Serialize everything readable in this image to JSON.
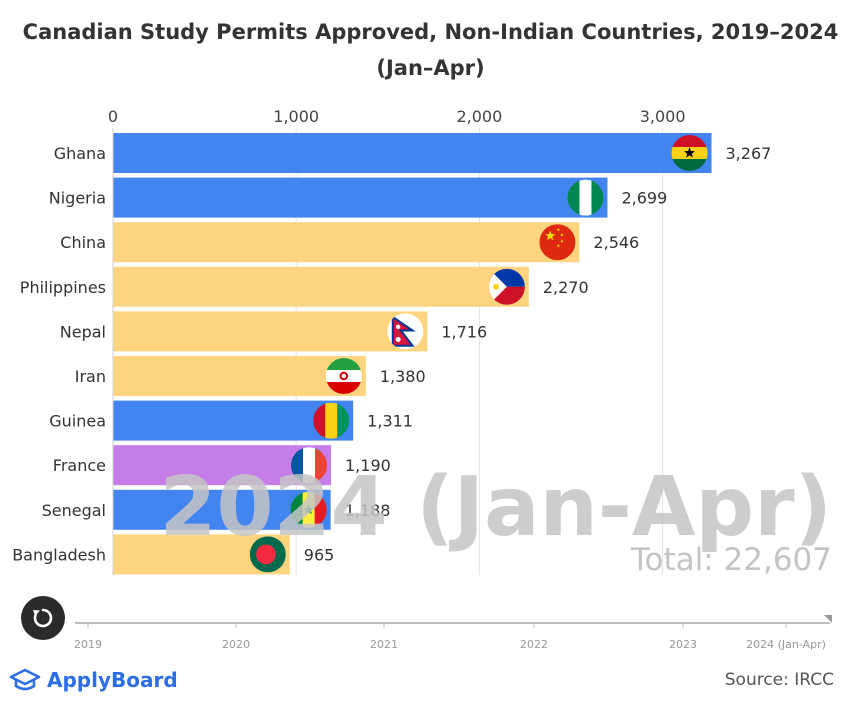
{
  "chart_data": {
    "type": "bar",
    "orientation": "horizontal",
    "title_line1": "Canadian Study Permits Approved, Non-Indian Countries, 2019–2024",
    "title_line2": "(Jan–Apr)",
    "categories": [
      "Ghana",
      "Nigeria",
      "China",
      "Philippines",
      "Nepal",
      "Iran",
      "Guinea",
      "France",
      "Senegal",
      "Bangladesh"
    ],
    "values": [
      3267,
      2699,
      2546,
      2270,
      1716,
      1380,
      1311,
      1190,
      1188,
      965
    ],
    "value_labels": [
      "3,267",
      "2,699",
      "2,546",
      "2,270",
      "1,716",
      "1,380",
      "1,311",
      "1,190",
      "1,188",
      "965"
    ],
    "bar_colors": [
      "#4285f0",
      "#4285f0",
      "#ffd47f",
      "#ffd47f",
      "#ffd47f",
      "#ffd47f",
      "#4285f0",
      "#c57de8",
      "#4285f0",
      "#ffd47f"
    ],
    "flag_icons": [
      "ghana-flag-icon",
      "nigeria-flag-icon",
      "china-flag-icon",
      "philippines-flag-icon",
      "nepal-flag-icon",
      "iran-flag-icon",
      "guinea-flag-icon",
      "france-flag-icon",
      "senegal-flag-icon",
      "bangladesh-flag-icon"
    ],
    "x_ticks": [
      0,
      1000,
      2000,
      3000
    ],
    "x_tick_labels": [
      "0",
      "1,000",
      "2,000",
      "3,000"
    ],
    "xlim": [
      0,
      3500
    ],
    "grid": true,
    "watermark_year": "2024 (Jan-Apr)",
    "watermark_total": "Total: 22,607",
    "timeline_labels": [
      "2019",
      "2020",
      "2021",
      "2022",
      "2023",
      "2024 (Jan-Apr)"
    ]
  },
  "brand": {
    "name": "ApplyBoard",
    "color": "#2d6ee6"
  },
  "source": "Source: IRCC",
  "icons": {
    "replay": "replay-icon",
    "logo": "applyboard-logo-icon"
  }
}
